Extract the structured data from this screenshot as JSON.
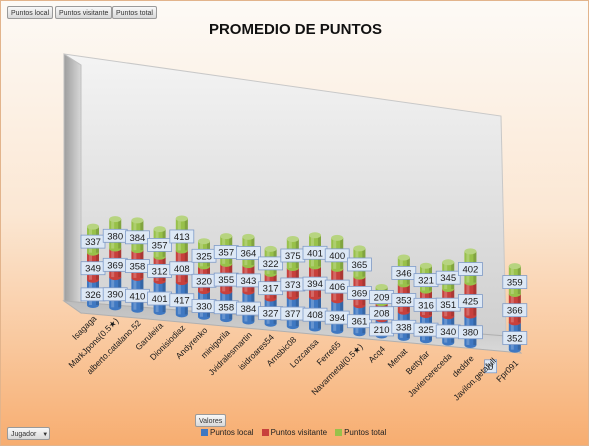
{
  "pivot": {
    "field_buttons": [
      "Puntos local",
      "Puntos visitante",
      "Puntos total"
    ],
    "values_button": "Valores",
    "axis_button": "Jugador",
    "axis_button_arrow": "▼"
  },
  "colors": {
    "local": "#3f78c2",
    "visitante": "#c8403c",
    "total": "#98c14a",
    "label_bg": "#dde8f5",
    "label_border": "#7f9bc8"
  },
  "chart_data": {
    "type": "bar",
    "stacked": true,
    "style": "3d-cylinder",
    "title": "PROMEDIO DE PUNTOS",
    "categories": [
      "Isagaga",
      "MarkJpons(0.5★)",
      "alberto.catalano.52",
      "Garuleira",
      "Dionisiodiaz",
      "Andyrenko",
      "minigorila",
      "Jvidralesmartin",
      "isidroares54",
      "Arnsbic08",
      "Lozcansa",
      "Ferre65",
      "Navarmetal(0.5★)",
      "Acq4",
      "Menat",
      "Bettyfar",
      "Javiercereceda",
      "deddre",
      "Javilon.getafull",
      "Fpr091"
    ],
    "series": [
      {
        "name": "Puntos local",
        "values": [
          326,
          390,
          410,
          401,
          417,
          330,
          358,
          384,
          327,
          377,
          408,
          394,
          361,
          210,
          338,
          325,
          340,
          380,
          0,
          352
        ]
      },
      {
        "name": "Puntos visitante",
        "values": [
          349,
          369,
          358,
          312,
          408,
          320,
          355,
          343,
          317,
          373,
          394,
          406,
          369,
          208,
          353,
          316,
          351,
          425,
          0,
          366
        ]
      },
      {
        "name": "Puntos total",
        "values": [
          337,
          380,
          384,
          357,
          413,
          325,
          357,
          364,
          322,
          375,
          401,
          400,
          365,
          209,
          346,
          321,
          345,
          402,
          0,
          359
        ]
      }
    ],
    "legend_position": "bottom",
    "grid": false
  }
}
